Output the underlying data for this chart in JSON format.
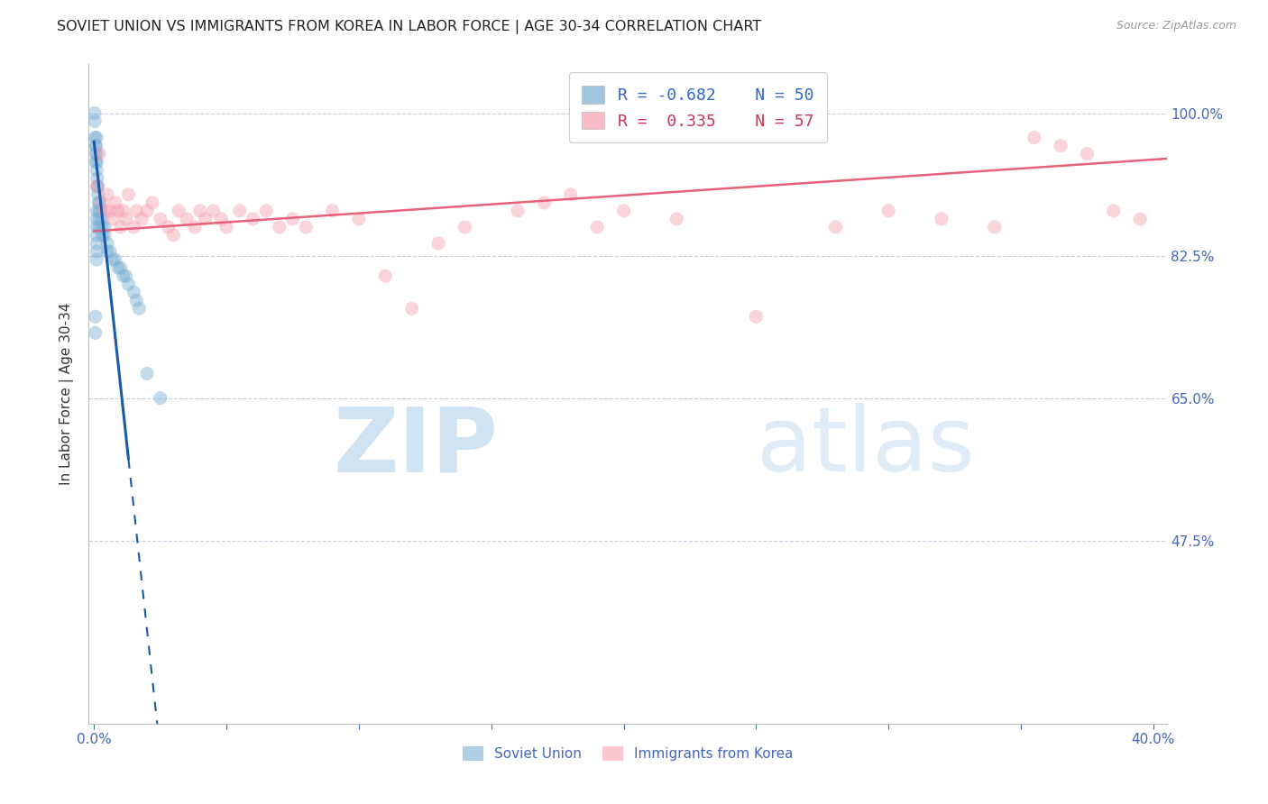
{
  "title": "SOVIET UNION VS IMMIGRANTS FROM KOREA IN LABOR FORCE | AGE 30-34 CORRELATION CHART",
  "source": "Source: ZipAtlas.com",
  "ylabel": "In Labor Force | Age 30-34",
  "xlim": [
    -0.002,
    0.405
  ],
  "ylim": [
    0.25,
    1.06
  ],
  "yticks": [
    0.475,
    0.65,
    0.825,
    1.0
  ],
  "ytick_labels": [
    "47.5%",
    "65.0%",
    "82.5%",
    "100.0%"
  ],
  "xticks": [
    0.0,
    0.05,
    0.1,
    0.15,
    0.2,
    0.25,
    0.3,
    0.35,
    0.4
  ],
  "blue_color": "#7BAFD4",
  "pink_color": "#F4A0B0",
  "blue_line_color": "#1A5BA6",
  "pink_line_color": "#E8607A",
  "blue_scatter_alpha": 0.45,
  "pink_scatter_alpha": 0.45,
  "scatter_size": 120,
  "watermark_zip_color": "#C5DCF0",
  "watermark_atlas_color": "#C5DCF0",
  "soviet_x": [
    0.0002,
    0.0003,
    0.0004,
    0.0005,
    0.0006,
    0.0007,
    0.0008,
    0.0009,
    0.001,
    0.001,
    0.001,
    0.0012,
    0.0013,
    0.0015,
    0.0015,
    0.0017,
    0.002,
    0.002,
    0.002,
    0.002,
    0.0025,
    0.003,
    0.003,
    0.003,
    0.004,
    0.004,
    0.005,
    0.005,
    0.006,
    0.007,
    0.008,
    0.009,
    0.01,
    0.011,
    0.012,
    0.013,
    0.015,
    0.016,
    0.017,
    0.001,
    0.001,
    0.001,
    0.001,
    0.001,
    0.001,
    0.001,
    0.0005,
    0.0005,
    0.02,
    0.025
  ],
  "soviet_y": [
    1.0,
    0.99,
    0.97,
    0.96,
    0.95,
    0.94,
    0.96,
    0.97,
    0.93,
    0.94,
    0.95,
    0.92,
    0.91,
    0.9,
    0.91,
    0.89,
    0.89,
    0.88,
    0.87,
    0.86,
    0.88,
    0.87,
    0.86,
    0.85,
    0.86,
    0.85,
    0.84,
    0.83,
    0.83,
    0.82,
    0.82,
    0.81,
    0.81,
    0.8,
    0.8,
    0.79,
    0.78,
    0.77,
    0.76,
    0.88,
    0.87,
    0.86,
    0.85,
    0.84,
    0.83,
    0.82,
    0.75,
    0.73,
    0.68,
    0.65
  ],
  "korea_x": [
    0.001,
    0.002,
    0.003,
    0.004,
    0.005,
    0.006,
    0.007,
    0.008,
    0.009,
    0.01,
    0.011,
    0.012,
    0.013,
    0.015,
    0.016,
    0.018,
    0.02,
    0.022,
    0.025,
    0.028,
    0.03,
    0.032,
    0.035,
    0.038,
    0.04,
    0.042,
    0.045,
    0.048,
    0.05,
    0.055,
    0.06,
    0.065,
    0.07,
    0.075,
    0.08,
    0.09,
    0.1,
    0.11,
    0.12,
    0.13,
    0.14,
    0.16,
    0.17,
    0.18,
    0.19,
    0.2,
    0.22,
    0.25,
    0.28,
    0.3,
    0.32,
    0.34,
    0.355,
    0.365,
    0.375,
    0.385,
    0.395
  ],
  "korea_y": [
    0.91,
    0.95,
    0.89,
    0.88,
    0.9,
    0.88,
    0.87,
    0.89,
    0.88,
    0.86,
    0.88,
    0.87,
    0.9,
    0.86,
    0.88,
    0.87,
    0.88,
    0.89,
    0.87,
    0.86,
    0.85,
    0.88,
    0.87,
    0.86,
    0.88,
    0.87,
    0.88,
    0.87,
    0.86,
    0.88,
    0.87,
    0.88,
    0.86,
    0.87,
    0.86,
    0.88,
    0.87,
    0.8,
    0.76,
    0.84,
    0.86,
    0.88,
    0.89,
    0.9,
    0.86,
    0.88,
    0.87,
    0.75,
    0.86,
    0.88,
    0.87,
    0.86,
    0.97,
    0.96,
    0.95,
    0.88,
    0.87
  ],
  "blue_trendline_x0": 0.0,
  "blue_trendline_y0": 0.965,
  "blue_trendline_x_solid_end": 0.013,
  "blue_trendline_x_dashed_end": 0.025,
  "blue_trendline_slope": -30.0,
  "pink_trendline_x0": 0.0,
  "pink_trendline_y0": 0.855,
  "pink_trendline_slope": 0.22,
  "pink_trendline_x_end": 0.405
}
